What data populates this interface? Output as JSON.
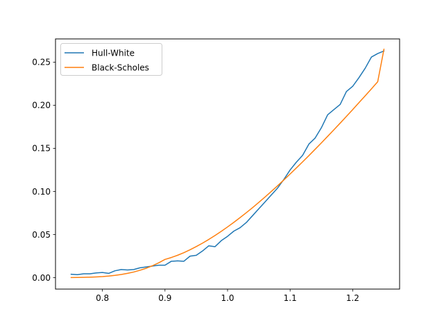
{
  "chart_data": {
    "type": "line",
    "title": "",
    "xlabel": "",
    "ylabel": "",
    "xlim": [
      0.725,
      1.275
    ],
    "ylim": [
      -0.0132,
      0.277
    ],
    "xticks": [
      0.8,
      0.9,
      1.0,
      1.1,
      1.2
    ],
    "xtick_labels": [
      "0.8",
      "0.9",
      "1.0",
      "1.1",
      "1.2"
    ],
    "yticks": [
      0.0,
      0.05,
      0.1,
      0.15,
      0.2,
      0.25
    ],
    "ytick_labels": [
      "0.00",
      "0.05",
      "0.10",
      "0.15",
      "0.20",
      "0.25"
    ],
    "grid": false,
    "legend_position": "upper-left",
    "series": [
      {
        "name": "Hull-White",
        "color": "#1f77b4",
        "x": [
          0.75,
          0.76,
          0.77,
          0.78,
          0.79,
          0.8,
          0.81,
          0.82,
          0.83,
          0.84,
          0.85,
          0.86,
          0.87,
          0.88,
          0.89,
          0.9,
          0.91,
          0.92,
          0.93,
          0.94,
          0.95,
          0.96,
          0.97,
          0.98,
          0.99,
          1.0,
          1.01,
          1.02,
          1.03,
          1.04,
          1.05,
          1.06,
          1.07,
          1.08,
          1.09,
          1.1,
          1.11,
          1.12,
          1.13,
          1.14,
          1.15,
          1.16,
          1.17,
          1.18,
          1.19,
          1.2,
          1.21,
          1.22,
          1.23,
          1.24,
          1.25
        ],
        "y": [
          0.004,
          0.0035,
          0.0045,
          0.0045,
          0.0055,
          0.006,
          0.005,
          0.008,
          0.0095,
          0.009,
          0.0095,
          0.0115,
          0.0125,
          0.0135,
          0.0145,
          0.0145,
          0.019,
          0.0195,
          0.019,
          0.025,
          0.026,
          0.031,
          0.037,
          0.036,
          0.043,
          0.048,
          0.054,
          0.058,
          0.064,
          0.072,
          0.08,
          0.088,
          0.096,
          0.104,
          0.114,
          0.125,
          0.134,
          0.142,
          0.155,
          0.162,
          0.174,
          0.189,
          0.195,
          0.201,
          0.216,
          0.222,
          0.232,
          0.243,
          0.256,
          0.26,
          0.263
        ]
      },
      {
        "name": "Black-Scholes",
        "color": "#ff7f0e",
        "x": [
          0.75,
          0.76,
          0.77,
          0.78,
          0.79,
          0.8,
          0.81,
          0.82,
          0.83,
          0.84,
          0.85,
          0.86,
          0.87,
          0.88,
          0.89,
          0.9,
          0.91,
          0.92,
          0.93,
          0.94,
          0.95,
          0.96,
          0.97,
          0.98,
          0.99,
          1.0,
          1.01,
          1.02,
          1.03,
          1.04,
          1.05,
          1.06,
          1.07,
          1.08,
          1.09,
          1.1,
          1.11,
          1.12,
          1.13,
          1.14,
          1.15,
          1.16,
          1.17,
          1.18,
          1.19,
          1.2,
          1.21,
          1.22,
          1.23,
          1.24,
          1.25
        ],
        "y": [
          0.0002,
          0.0003,
          0.0004,
          0.0006,
          0.0009,
          0.0013,
          0.0019,
          0.0027,
          0.0037,
          0.005,
          0.0066,
          0.0086,
          0.011,
          0.0139,
          0.0173,
          0.0212,
          0.0234,
          0.026,
          0.029,
          0.0324,
          0.0361,
          0.0401,
          0.0444,
          0.049,
          0.0538,
          0.0589,
          0.0642,
          0.0697,
          0.0754,
          0.0813,
          0.0874,
          0.0937,
          0.1001,
          0.1067,
          0.1134,
          0.1203,
          0.1273,
          0.1344,
          0.1416,
          0.149,
          0.1564,
          0.164,
          0.1716,
          0.1793,
          0.1871,
          0.195,
          0.203,
          0.211,
          0.2191,
          0.2273,
          0.265
        ]
      }
    ]
  }
}
